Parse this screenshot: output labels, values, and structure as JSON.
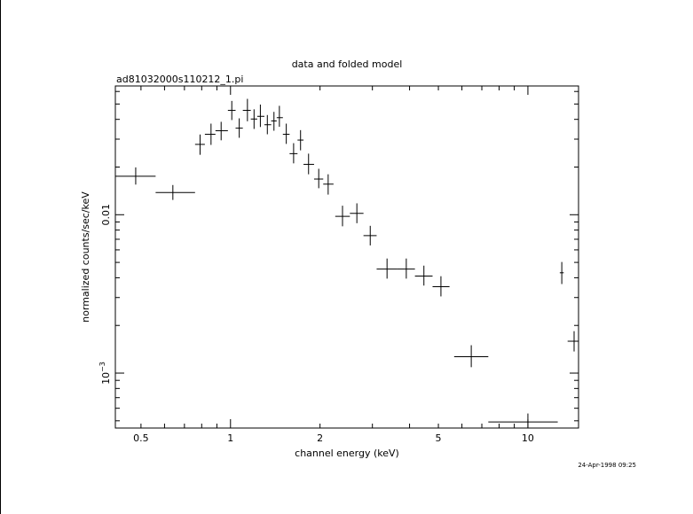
{
  "chart_data": {
    "type": "scatter",
    "title": "data and folded model",
    "subtitle": "ad81032000s110212_1.pi",
    "xlabel": "channel energy (keV)",
    "ylabel": "normalized counts/sec/keV",
    "timestamp": "24-Apr-1998 09:25",
    "x_scale": "log",
    "y_scale": "log",
    "xlim": [
      0.41,
      14.8
    ],
    "ylim": [
      0.00045,
      0.065
    ],
    "x_ticks": [
      {
        "value": 0.5,
        "label": "0.5"
      },
      {
        "value": 1,
        "label": "1"
      },
      {
        "value": 2,
        "label": "2"
      },
      {
        "value": 5,
        "label": "5"
      },
      {
        "value": 10,
        "label": "10"
      }
    ],
    "y_ticks": [
      {
        "value": 0.01,
        "label": "0.01"
      },
      {
        "value": 0.001,
        "label": "10",
        "exponent": "−3"
      }
    ],
    "grid": false,
    "series": [
      {
        "points": [
          {
            "x": 0.48,
            "xlo": 0.41,
            "xhi": 0.56,
            "y": 0.0175,
            "ylo": 0.0155,
            "yhi": 0.0199
          },
          {
            "x": 0.64,
            "xlo": 0.56,
            "xhi": 0.76,
            "y": 0.0138,
            "ylo": 0.0124,
            "yhi": 0.0154
          },
          {
            "x": 0.79,
            "xlo": 0.76,
            "xhi": 0.82,
            "y": 0.0278,
            "ylo": 0.0239,
            "yhi": 0.0321
          },
          {
            "x": 0.86,
            "xlo": 0.82,
            "xhi": 0.89,
            "y": 0.0322,
            "ylo": 0.0276,
            "yhi": 0.0376
          },
          {
            "x": 0.93,
            "xlo": 0.89,
            "xhi": 0.98,
            "y": 0.0339,
            "ylo": 0.0295,
            "yhi": 0.0386
          },
          {
            "x": 1.01,
            "xlo": 0.98,
            "xhi": 1.04,
            "y": 0.0456,
            "ylo": 0.0396,
            "yhi": 0.0523
          },
          {
            "x": 1.07,
            "xlo": 1.04,
            "xhi": 1.1,
            "y": 0.0352,
            "ylo": 0.0306,
            "yhi": 0.0406
          },
          {
            "x": 1.14,
            "xlo": 1.1,
            "xhi": 1.17,
            "y": 0.0456,
            "ylo": 0.0389,
            "yhi": 0.0539
          },
          {
            "x": 1.2,
            "xlo": 1.17,
            "xhi": 1.23,
            "y": 0.0402,
            "ylo": 0.0348,
            "yhi": 0.0463
          },
          {
            "x": 1.26,
            "xlo": 1.23,
            "xhi": 1.3,
            "y": 0.0418,
            "ylo": 0.0358,
            "yhi": 0.0496
          },
          {
            "x": 1.33,
            "xlo": 1.3,
            "xhi": 1.37,
            "y": 0.037,
            "ylo": 0.0322,
            "yhi": 0.0426
          },
          {
            "x": 1.4,
            "xlo": 1.37,
            "xhi": 1.43,
            "y": 0.0391,
            "ylo": 0.0339,
            "yhi": 0.0446
          },
          {
            "x": 1.46,
            "xlo": 1.43,
            "xhi": 1.5,
            "y": 0.041,
            "ylo": 0.0359,
            "yhi": 0.0487
          },
          {
            "x": 1.54,
            "xlo": 1.5,
            "xhi": 1.58,
            "y": 0.0322,
            "ylo": 0.028,
            "yhi": 0.0376
          },
          {
            "x": 1.63,
            "xlo": 1.58,
            "xhi": 1.68,
            "y": 0.0243,
            "ylo": 0.0211,
            "yhi": 0.0283
          },
          {
            "x": 1.72,
            "xlo": 1.68,
            "xhi": 1.76,
            "y": 0.0296,
            "ylo": 0.0255,
            "yhi": 0.0342
          },
          {
            "x": 1.83,
            "xlo": 1.76,
            "xhi": 1.91,
            "y": 0.0208,
            "ylo": 0.018,
            "yhi": 0.0243
          },
          {
            "x": 1.98,
            "xlo": 1.91,
            "xhi": 2.05,
            "y": 0.0168,
            "ylo": 0.0147,
            "yhi": 0.0195
          },
          {
            "x": 2.13,
            "xlo": 2.05,
            "xhi": 2.22,
            "y": 0.0156,
            "ylo": 0.0134,
            "yhi": 0.018
          },
          {
            "x": 2.38,
            "xlo": 2.25,
            "xhi": 2.52,
            "y": 0.00977,
            "ylo": 0.00845,
            "yhi": 0.0114
          },
          {
            "x": 2.66,
            "xlo": 2.52,
            "xhi": 2.8,
            "y": 0.0102,
            "ylo": 0.00884,
            "yhi": 0.0118
          },
          {
            "x": 2.95,
            "xlo": 2.8,
            "xhi": 3.1,
            "y": 0.00738,
            "ylo": 0.0064,
            "yhi": 0.00851
          },
          {
            "x": 3.36,
            "xlo": 3.1,
            "xhi": 3.63,
            "y": 0.00454,
            "ylo": 0.00395,
            "yhi": 0.00529
          },
          {
            "x": 3.9,
            "xlo": 3.63,
            "xhi": 4.17,
            "y": 0.00454,
            "ylo": 0.00395,
            "yhi": 0.00529
          },
          {
            "x": 4.47,
            "xlo": 4.17,
            "xhi": 4.78,
            "y": 0.0041,
            "ylo": 0.00357,
            "yhi": 0.00477
          },
          {
            "x": 5.1,
            "xlo": 4.78,
            "xhi": 5.45,
            "y": 0.00351,
            "ylo": 0.00305,
            "yhi": 0.00409
          },
          {
            "x": 6.45,
            "xlo": 5.65,
            "xhi": 7.36,
            "y": 0.00127,
            "ylo": 0.00109,
            "yhi": 0.0015
          },
          {
            "x": 10.0,
            "xlo": 7.36,
            "xhi": 12.6,
            "y": 0.000492,
            "ylo": 0.00045,
            "yhi": 0.000556
          },
          {
            "x": 13.0,
            "xlo": 12.8,
            "xhi": 13.2,
            "y": 0.0043,
            "ylo": 0.00365,
            "yhi": 0.00503
          },
          {
            "x": 14.3,
            "xlo": 13.6,
            "xhi": 14.8,
            "y": 0.00159,
            "ylo": 0.00137,
            "yhi": 0.00184
          }
        ]
      }
    ]
  }
}
